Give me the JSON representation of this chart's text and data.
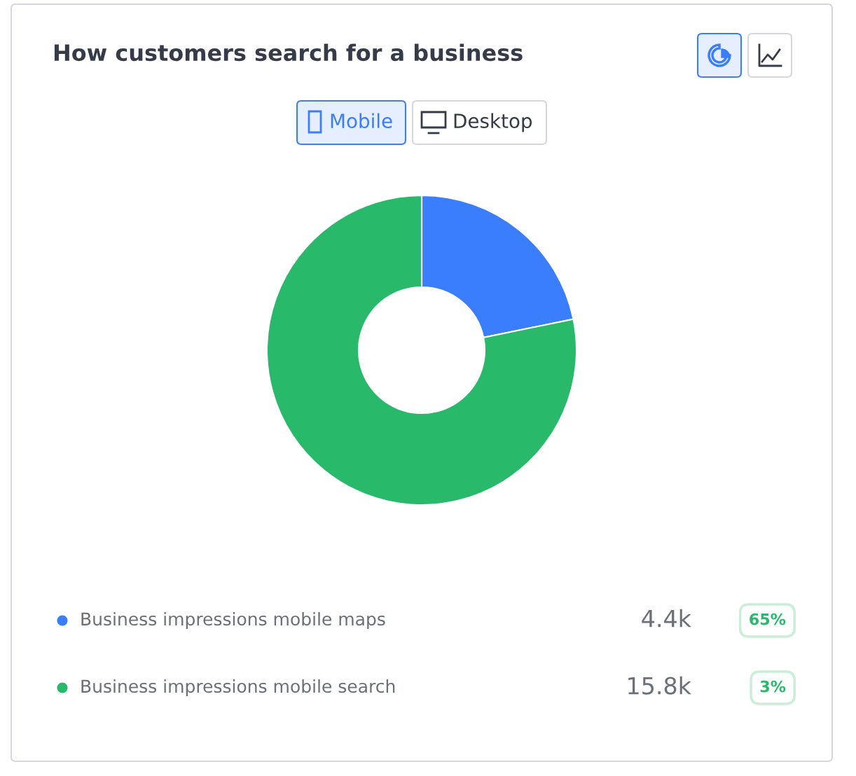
{
  "chart_data": {
    "type": "donut",
    "title": "How customers search for a business",
    "categories": [
      "Business impressions mobile maps",
      "Business impressions mobile search"
    ],
    "values": [
      4400,
      15800
    ],
    "value_labels": [
      "4.4k",
      "15.8k"
    ],
    "colors": [
      "#3a7efd",
      "#28b96b"
    ],
    "legend": "bottom",
    "annotations": [
      "Mobile",
      "Desktop",
      "65%",
      "3%"
    ]
  }
}
